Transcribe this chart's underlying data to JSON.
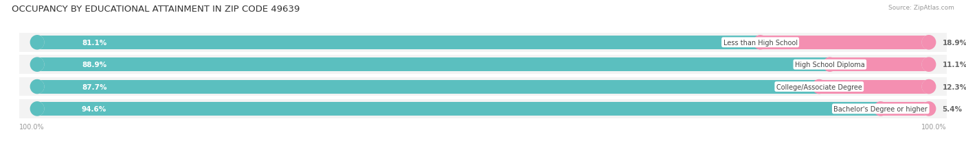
{
  "title": "OCCUPANCY BY EDUCATIONAL ATTAINMENT IN ZIP CODE 49639",
  "source": "Source: ZipAtlas.com",
  "categories": [
    "Less than High School",
    "High School Diploma",
    "College/Associate Degree",
    "Bachelor's Degree or higher"
  ],
  "owner_values": [
    81.1,
    88.9,
    87.7,
    94.6
  ],
  "renter_values": [
    18.9,
    11.1,
    12.3,
    5.4
  ],
  "owner_color": "#5BBFBF",
  "renter_color": "#F48FB1",
  "bar_bg_color": "#E8E8E8",
  "bg_color": "#ffffff",
  "row_bg_color": "#F5F5F5",
  "title_fontsize": 9.5,
  "label_fontsize": 7.5,
  "cat_fontsize": 7.0,
  "tick_fontsize": 7.0,
  "source_fontsize": 6.5,
  "bar_height": 0.62,
  "x_left_label": "100.0%",
  "x_right_label": "100.0%"
}
